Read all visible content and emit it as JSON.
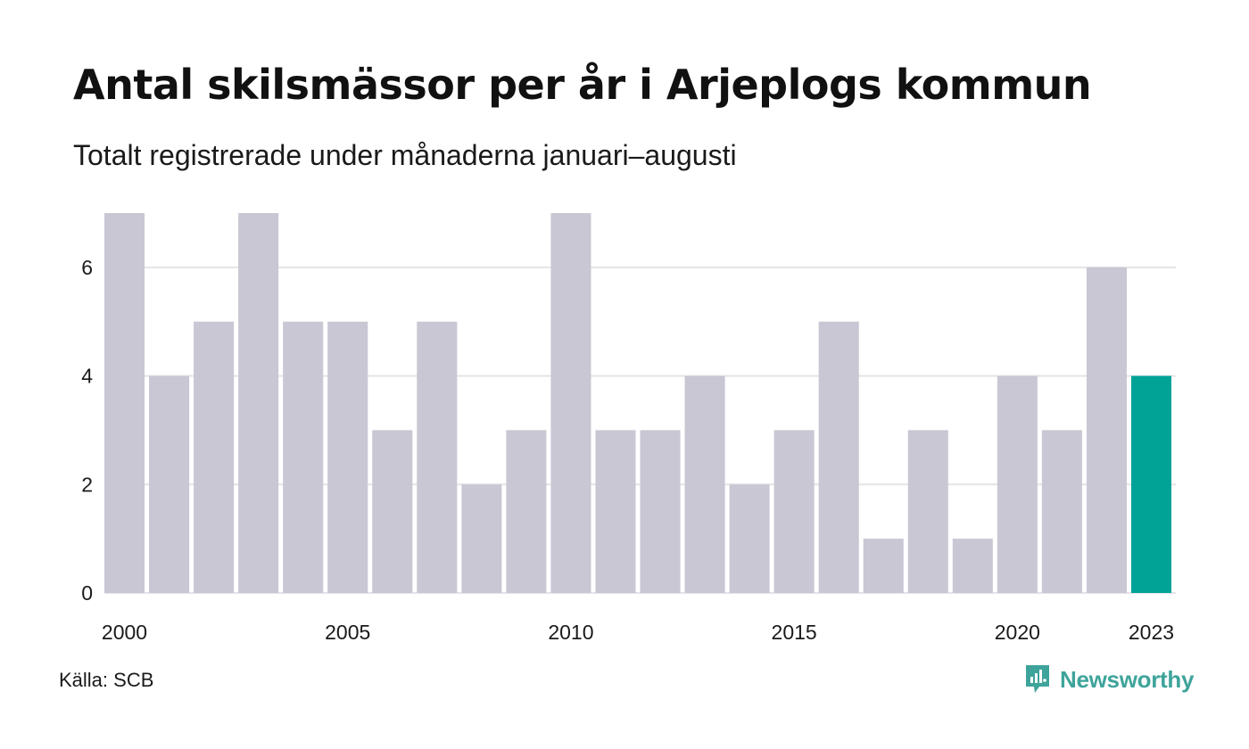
{
  "header": {
    "title": "Antal skilsmässor per år i Arjeplogs kommun",
    "subtitle": "Totalt registrerade under månaderna januari–augusti"
  },
  "footer": {
    "source": "Källa: SCB",
    "brand": "Newsworthy"
  },
  "colors": {
    "bar": "#c8c7d3",
    "highlight": "#00a396",
    "grid": "#e4e4e8",
    "brand": "#3ea49b"
  },
  "chart_data": {
    "type": "bar",
    "categories": [
      "2000",
      "2001",
      "2002",
      "2003",
      "2004",
      "2005",
      "2006",
      "2007",
      "2008",
      "2009",
      "2010",
      "2011",
      "2012",
      "2013",
      "2014",
      "2015",
      "2016",
      "2017",
      "2018",
      "2019",
      "2020",
      "2021",
      "2022",
      "2023"
    ],
    "values": [
      7,
      4,
      5,
      7,
      5,
      5,
      3,
      5,
      2,
      3,
      7,
      3,
      3,
      4,
      2,
      3,
      5,
      1,
      3,
      1,
      4,
      3,
      6,
      4
    ],
    "highlight_category": "2023",
    "x_tick_labels": [
      "2000",
      "2005",
      "2010",
      "2015",
      "2020",
      "2023"
    ],
    "y_ticks": [
      0,
      2,
      4,
      6
    ],
    "ylim": [
      0,
      7
    ],
    "grid": true,
    "title": "Antal skilsmässor per år i Arjeplogs kommun",
    "subtitle": "Totalt registrerade under månaderna januari–augusti",
    "xlabel": "",
    "ylabel": ""
  }
}
